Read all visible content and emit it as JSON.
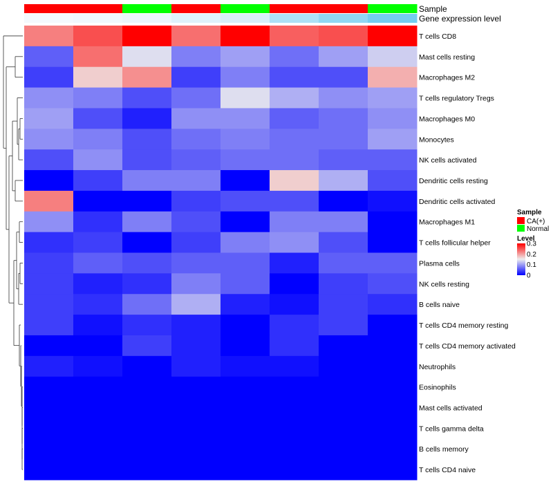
{
  "chart_data": {
    "type": "heatmap",
    "annotation_labels": [
      "Sample",
      "Gene expression level"
    ],
    "columns": [
      {
        "sample": "CA(+)",
        "expression": 0.0
      },
      {
        "sample": "CA(+)",
        "expression": 0.03
      },
      {
        "sample": "Normal",
        "expression": 0.06
      },
      {
        "sample": "CA(+)",
        "expression": 0.15
      },
      {
        "sample": "Normal",
        "expression": 0.2
      },
      {
        "sample": "CA(+)",
        "expression": 0.5
      },
      {
        "sample": "CA(+)",
        "expression": 0.7
      },
      {
        "sample": "Normal",
        "expression": 0.9
      }
    ],
    "rows": [
      "T cells CD8",
      "Mast cells resting",
      "Macrophages M2",
      "T cells regulatory  Tregs",
      "Macrophages M0",
      "Monocytes",
      "NK cells activated",
      "Dendritic cells resting",
      "Dendritic cells activated",
      "Macrophages M1",
      "T cells follicular helper",
      "Plasma cells",
      "NK cells resting",
      "B cells naive",
      "T cells CD4 memory resting",
      "T cells CD4 memory activated",
      "Neutrophils",
      "Eosinophils",
      "Mast cells activated",
      "T cells gamma delta",
      "B cells memory",
      "T cells CD4 naive"
    ],
    "values": [
      [
        0.22,
        0.25,
        0.3,
        0.23,
        0.3,
        0.24,
        0.25,
        0.3
      ],
      [
        0.06,
        0.23,
        0.14,
        0.08,
        0.1,
        0.07,
        0.1,
        0.13
      ],
      [
        0.04,
        0.17,
        0.21,
        0.04,
        0.08,
        0.05,
        0.05,
        0.19
      ],
      [
        0.09,
        0.08,
        0.05,
        0.07,
        0.14,
        0.11,
        0.09,
        0.1
      ],
      [
        0.1,
        0.05,
        0.02,
        0.09,
        0.09,
        0.06,
        0.07,
        0.09
      ],
      [
        0.09,
        0.08,
        0.05,
        0.07,
        0.08,
        0.07,
        0.07,
        0.1
      ],
      [
        0.05,
        0.09,
        0.05,
        0.06,
        0.07,
        0.07,
        0.06,
        0.06
      ],
      [
        0.0,
        0.04,
        0.08,
        0.08,
        0.0,
        0.17,
        0.11,
        0.05
      ],
      [
        0.22,
        0.0,
        0.0,
        0.04,
        0.05,
        0.05,
        0.0,
        0.01
      ],
      [
        0.09,
        0.03,
        0.08,
        0.05,
        0.0,
        0.08,
        0.08,
        0.0
      ],
      [
        0.03,
        0.04,
        0.0,
        0.04,
        0.08,
        0.09,
        0.05,
        0.0
      ],
      [
        0.04,
        0.06,
        0.05,
        0.06,
        0.06,
        0.02,
        0.06,
        0.06
      ],
      [
        0.04,
        0.02,
        0.03,
        0.08,
        0.06,
        0.0,
        0.04,
        0.05
      ],
      [
        0.04,
        0.03,
        0.07,
        0.11,
        0.02,
        0.01,
        0.04,
        0.03
      ],
      [
        0.04,
        0.01,
        0.03,
        0.02,
        0.0,
        0.03,
        0.04,
        0.0
      ],
      [
        0.0,
        0.0,
        0.04,
        0.02,
        0.0,
        0.03,
        0.0,
        0.0
      ],
      [
        0.02,
        0.01,
        0.0,
        0.02,
        0.01,
        0.01,
        0.0,
        0.0
      ],
      [
        0.0,
        0.0,
        0.0,
        0.0,
        0.0,
        0.0,
        0.0,
        0.0
      ],
      [
        0.0,
        0.0,
        0.0,
        0.0,
        0.0,
        0.0,
        0.0,
        0.0
      ],
      [
        0.0,
        0.0,
        0.0,
        0.0,
        0.0,
        0.0,
        0.0,
        0.0
      ],
      [
        0.0,
        0.0,
        0.0,
        0.0,
        0.0,
        0.0,
        0.0,
        0.0
      ],
      [
        0.0,
        0.0,
        0.0,
        0.0,
        0.0,
        0.0,
        0.0,
        0.0
      ]
    ],
    "color_scale": {
      "min": 0,
      "mid": 0.15,
      "max": 0.3,
      "low_color": "#0000ff",
      "mid_color": "#eeeeee",
      "high_color": "#ff0000"
    },
    "expression_scale": {
      "low_color": "#f4f9fd",
      "high_color": "#66c8ee"
    },
    "legend": {
      "sample_title": "Sample",
      "sample_items": [
        {
          "label": "CA(+)",
          "color": "#ff0000"
        },
        {
          "label": "Normal",
          "color": "#00ff00"
        }
      ],
      "level_title": "Level",
      "level_ticks": [
        "0.3",
        "0.2",
        "0.1",
        "0"
      ],
      "placement": "right"
    },
    "row_dendrogram": true
  }
}
